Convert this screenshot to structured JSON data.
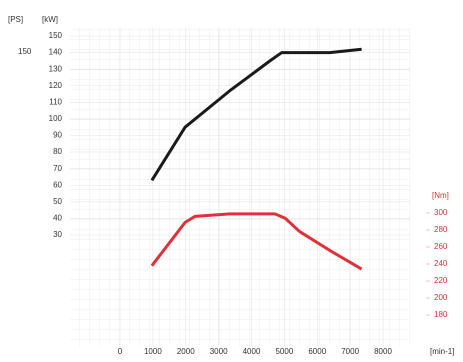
{
  "chart_data": {
    "type": "line",
    "y_unit_ps": "[PS]",
    "ylabel": "[kW]",
    "y2label": "[Nm]",
    "xlabel": "[min-1]",
    "ps_tick_label": "150",
    "xlim": [
      0,
      8000
    ],
    "xticks": [
      0,
      1000,
      2000,
      3000,
      4000,
      5000,
      6000,
      7000,
      8000
    ],
    "ylim": [
      30,
      150
    ],
    "yticks": [
      150,
      140,
      130,
      120,
      110,
      100,
      90,
      80,
      70,
      60,
      50,
      40,
      30
    ],
    "y2lim": [
      180,
      300
    ],
    "y2ticks": [
      300,
      280,
      260,
      240,
      220,
      200,
      180
    ],
    "grid": true,
    "series": [
      {
        "color": "#1a1a1a",
        "x": [
          970,
          1980,
          3340,
          4560,
          4920,
          6380,
          7350
        ],
        "values": [
          63,
          95,
          117,
          135,
          140,
          140,
          142
        ]
      },
      {
        "color": "#e0303a",
        "axis": "y2",
        "x": [
          970,
          1980,
          2280,
          3340,
          4710,
          5020,
          5470,
          6380,
          7350
        ],
        "values": [
          238,
          289,
          296,
          299,
          299,
          294,
          278,
          256,
          234
        ]
      }
    ]
  }
}
